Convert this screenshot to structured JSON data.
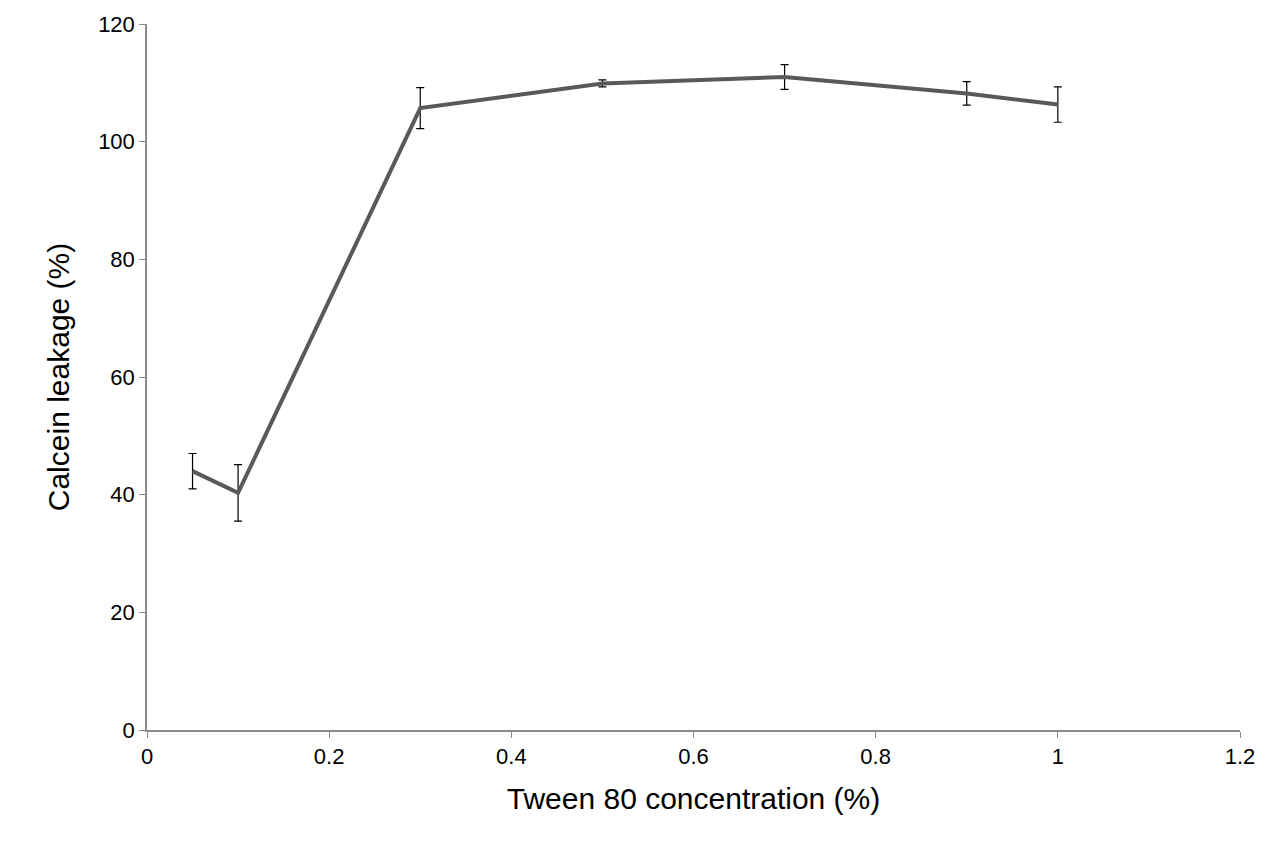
{
  "chart_data": {
    "type": "line",
    "x_label": "Tween 80 concentration (%)",
    "y_label": "Calcein leakage (%)",
    "x": [
      0.05,
      0.1,
      0.3,
      0.5,
      0.7,
      0.9,
      1.0
    ],
    "values": [
      44,
      40.3,
      105.7,
      109.9,
      111,
      108.2,
      106.3
    ],
    "error": [
      3,
      4.8,
      3.5,
      0.6,
      2.1,
      2,
      3
    ],
    "color": "#595959",
    "xlim": [
      0,
      1.2
    ],
    "xticks": [
      0,
      0.2,
      0.4,
      0.6,
      0.8,
      1,
      1.2
    ],
    "ylim": [
      0,
      120
    ],
    "yticks": [
      0,
      20,
      40,
      60,
      80,
      100,
      120
    ],
    "grid": false
  }
}
